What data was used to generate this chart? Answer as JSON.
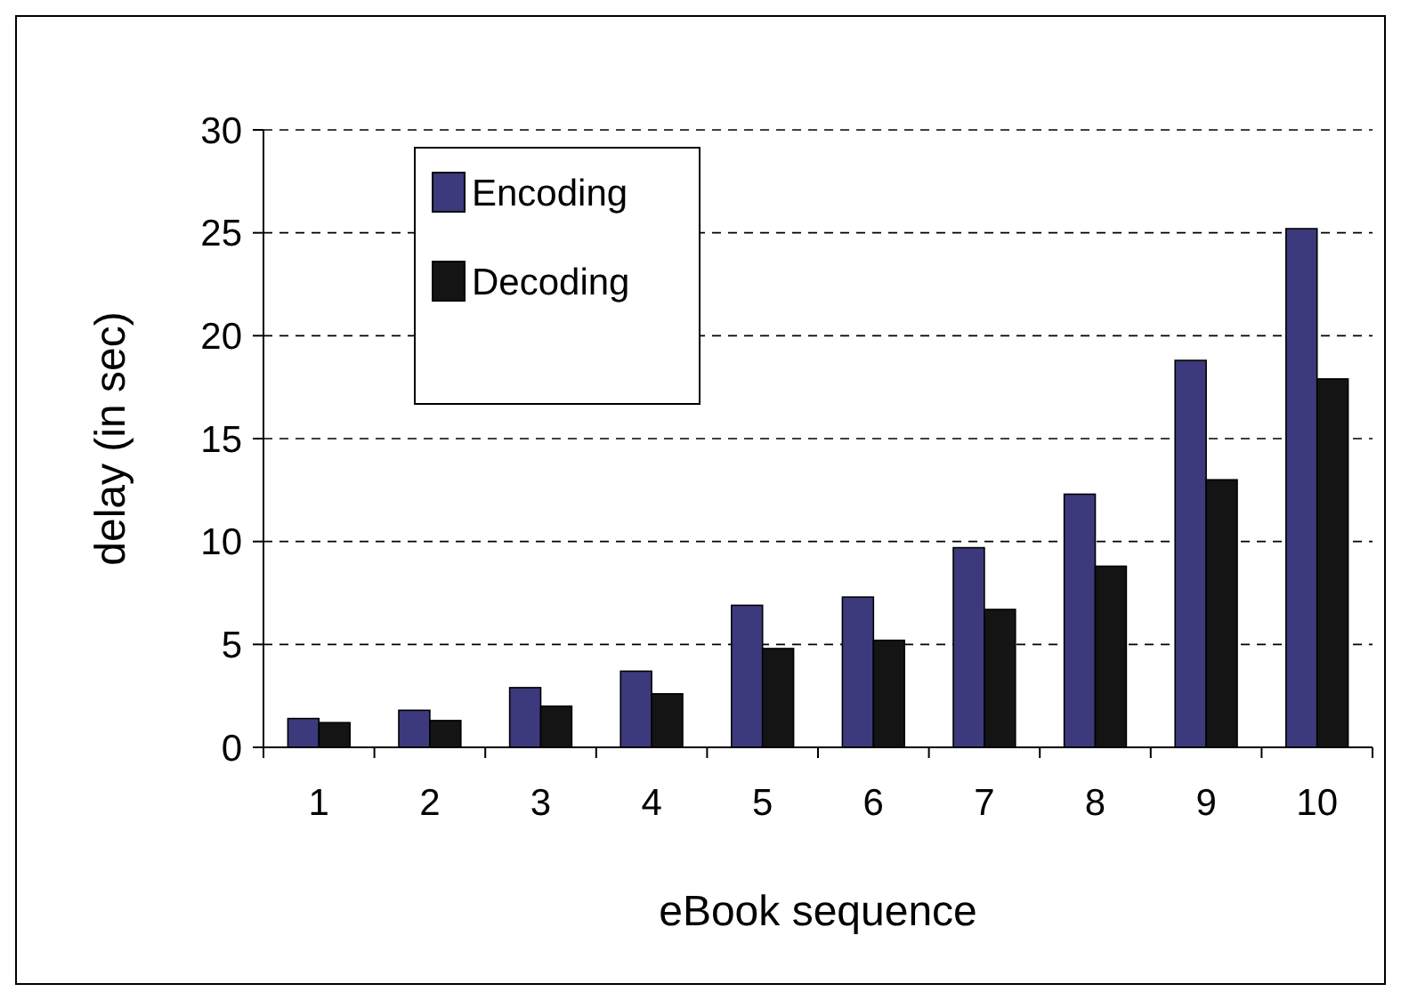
{
  "chart_data": {
    "type": "bar",
    "xlabel": "eBook sequence",
    "ylabel": "delay (in sec)",
    "categories": [
      "1",
      "2",
      "3",
      "4",
      "5",
      "6",
      "7",
      "8",
      "9",
      "10"
    ],
    "series": [
      {
        "name": "Encoding",
        "color": "#3c3a7c",
        "values": [
          1.4,
          1.8,
          2.9,
          3.7,
          6.9,
          7.3,
          9.7,
          12.3,
          18.8,
          25.2
        ]
      },
      {
        "name": "Decoding",
        "color": "#141414",
        "values": [
          1.2,
          1.3,
          2.0,
          2.6,
          4.8,
          5.2,
          6.7,
          8.8,
          13.0,
          17.9
        ]
      }
    ],
    "ylim": [
      0,
      30
    ],
    "yticks": [
      0,
      5,
      10,
      15,
      20,
      25,
      30
    ],
    "grid": "y",
    "legend": "top left"
  }
}
